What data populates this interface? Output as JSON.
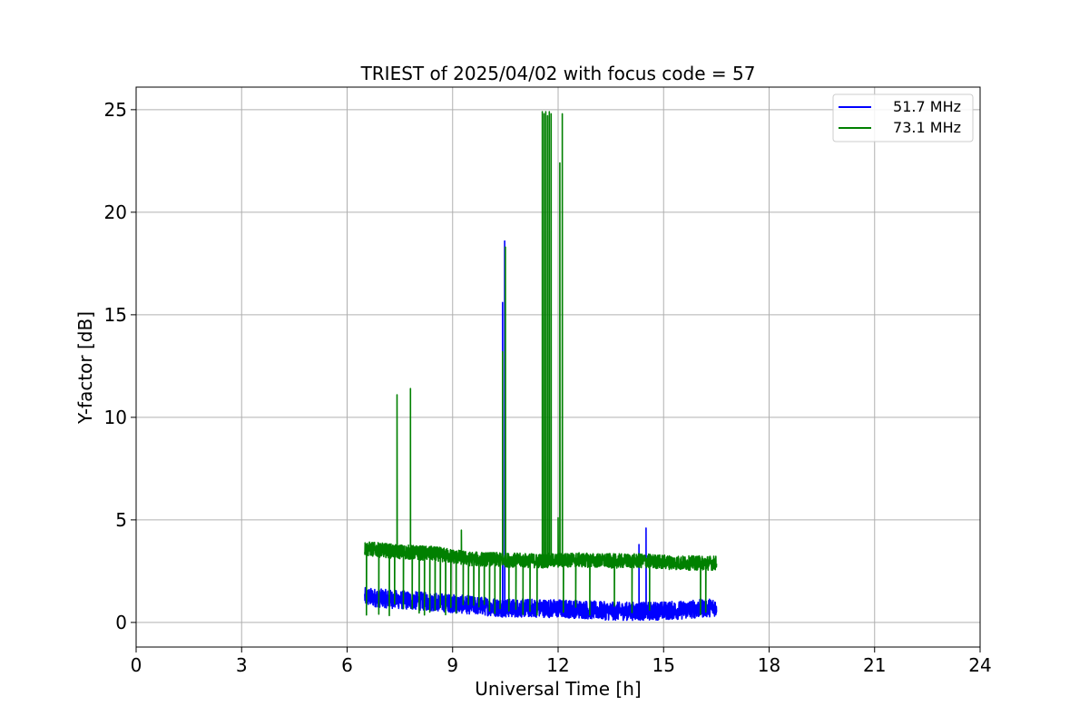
{
  "chart_data": {
    "type": "line",
    "title": "TRIEST of 2025/04/02 with focus code = 57",
    "xlabel": "Universal Time [h]",
    "ylabel": "Y-factor [dB]",
    "xlim": [
      0,
      24
    ],
    "ylim": [
      -1.2,
      26.1
    ],
    "xticks": [
      0,
      3,
      6,
      9,
      12,
      15,
      18,
      21,
      24
    ],
    "yticks": [
      0,
      5,
      10,
      15,
      20,
      25
    ],
    "grid": true,
    "legend_position": "top-right",
    "series": [
      {
        "name": "51.7 MHz",
        "color": "#0000ff",
        "x_range": [
          6.5,
          16.5
        ],
        "baseline": [
          [
            6.5,
            1.25
          ],
          [
            7.5,
            1.1
          ],
          [
            8.5,
            1.0
          ],
          [
            9.5,
            0.85
          ],
          [
            10.5,
            0.7
          ],
          [
            11.5,
            0.7
          ],
          [
            12.5,
            0.65
          ],
          [
            13.5,
            0.55
          ],
          [
            14.5,
            0.55
          ],
          [
            15.5,
            0.6
          ],
          [
            16.5,
            0.75
          ]
        ],
        "noise_amplitude": 0.45,
        "spikes": [
          {
            "x": 10.42,
            "y": 15.6
          },
          {
            "x": 10.48,
            "y": 18.6
          },
          {
            "x": 14.3,
            "y": 3.8
          },
          {
            "x": 14.5,
            "y": 4.6
          }
        ]
      },
      {
        "name": "73.1 MHz",
        "color": "#008000",
        "x_range": [
          6.5,
          16.5
        ],
        "baseline": [
          [
            6.5,
            3.6
          ],
          [
            7.5,
            3.45
          ],
          [
            8.5,
            3.35
          ],
          [
            9.5,
            3.1
          ],
          [
            10.5,
            3.05
          ],
          [
            11.5,
            3.0
          ],
          [
            12.5,
            3.05
          ],
          [
            13.5,
            3.0
          ],
          [
            14.5,
            3.0
          ],
          [
            15.5,
            2.9
          ],
          [
            16.5,
            2.9
          ]
        ],
        "noise_amplitude": 0.35,
        "spikes": [
          {
            "x": 7.42,
            "y": 11.1
          },
          {
            "x": 7.8,
            "y": 11.4
          },
          {
            "x": 9.25,
            "y": 4.5
          },
          {
            "x": 10.42,
            "y": 13.2
          },
          {
            "x": 10.5,
            "y": 18.3
          },
          {
            "x": 11.55,
            "y": 24.9
          },
          {
            "x": 11.6,
            "y": 24.8
          },
          {
            "x": 11.65,
            "y": 24.9
          },
          {
            "x": 11.7,
            "y": 24.7
          },
          {
            "x": 11.75,
            "y": 24.9
          },
          {
            "x": 11.8,
            "y": 24.8
          },
          {
            "x": 12.05,
            "y": 22.4
          },
          {
            "x": 12.12,
            "y": 24.8
          },
          {
            "x": 12.0,
            "y": 5.1
          }
        ],
        "dropouts": [
          6.55,
          6.9,
          7.2,
          7.35,
          7.6,
          7.85,
          8.05,
          8.2,
          8.35,
          8.5,
          8.65,
          8.8,
          8.95,
          9.1,
          9.3,
          9.45,
          9.6,
          9.75,
          9.9,
          10.05,
          10.2,
          10.35,
          10.6,
          10.8,
          11.0,
          11.2,
          11.4,
          12.15,
          12.5,
          12.9,
          13.6,
          14.1,
          14.6,
          16.05,
          16.2
        ],
        "dropout_floor": 0.3
      }
    ]
  }
}
